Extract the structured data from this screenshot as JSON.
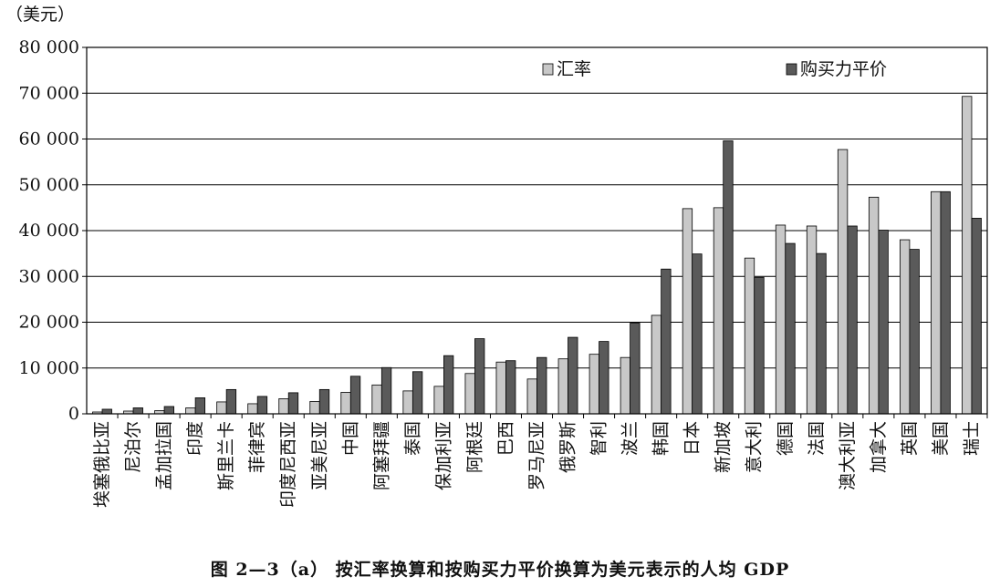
{
  "chart_data": {
    "type": "bar",
    "title": "",
    "caption": "图 2—3（a）   按汇率换算和按购买力平价换算为美元表示的人均 GDP",
    "ylabel": "（美元）",
    "xlabel": "",
    "ylim": [
      0,
      80000
    ],
    "yticks": [
      0,
      10000,
      20000,
      30000,
      40000,
      50000,
      60000,
      70000,
      80000
    ],
    "ytick_labels": [
      "0",
      "10 000",
      "20 000",
      "30 000",
      "40 000",
      "50 000",
      "60 000",
      "70 000",
      "80 000"
    ],
    "grid": true,
    "legend_position": "top-right",
    "categories": [
      "埃塞俄比亚",
      "尼泊尔",
      "孟加拉国",
      "印度",
      "斯里兰卡",
      "菲律宾",
      "印度尼西亚",
      "亚美尼亚",
      "中国",
      "阿塞拜疆",
      "泰国",
      "保加利亚",
      "阿根廷",
      "巴西",
      "罗马尼亚",
      "俄罗斯",
      "智利",
      "波兰",
      "韩国",
      "日本",
      "新加坡",
      "意大利",
      "德国",
      "法国",
      "澳大利亚",
      "加拿大",
      "英国",
      "美国",
      "瑞士"
    ],
    "series": [
      {
        "name": "汇率",
        "color": "#c8c8c8",
        "values": [
          400,
          600,
          700,
          1300,
          2600,
          2200,
          3300,
          2700,
          4700,
          6300,
          5000,
          6000,
          8800,
          11300,
          7600,
          12000,
          13000,
          12300,
          21500,
          44800,
          45000,
          34000,
          41200,
          41000,
          57700,
          47300,
          38000,
          48500,
          69300
        ]
      },
      {
        "name": "购买力平价",
        "color": "#5a5a5a",
        "values": [
          1000,
          1300,
          1600,
          3500,
          5300,
          3800,
          4600,
          5300,
          8200,
          10100,
          9200,
          12700,
          16400,
          11600,
          12300,
          16700,
          15800,
          19800,
          31600,
          34900,
          59600,
          29800,
          37200,
          35000,
          41000,
          40100,
          35900,
          48500,
          42700
        ]
      }
    ]
  }
}
